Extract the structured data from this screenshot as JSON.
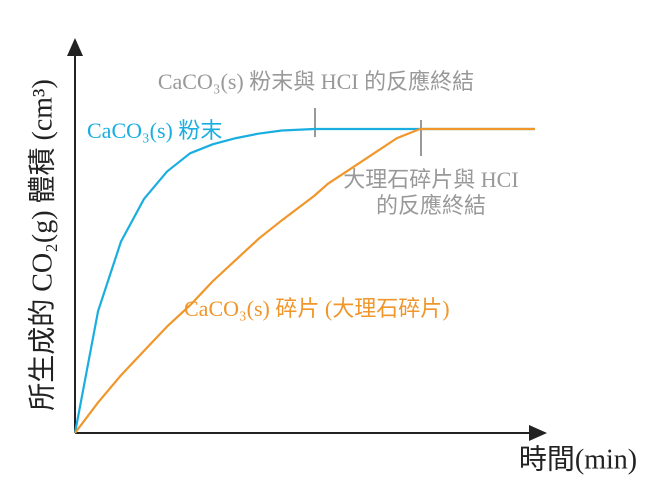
{
  "chart_data": {
    "type": "line",
    "x_label": "時間(min)",
    "y_label": "所生成的 CO₂(g) 體積 (cm³)",
    "x": [
      0,
      5,
      10,
      15,
      20,
      25,
      30,
      35,
      40,
      45,
      52,
      55,
      60,
      65,
      70,
      75,
      80,
      90,
      100
    ],
    "xlim": [
      0,
      100
    ],
    "ylim": [
      0,
      100
    ],
    "series": [
      {
        "name": "CaCO₃(s) 粉末",
        "color": "#1aaee0",
        "values": [
          0,
          40,
          63,
          77,
          86,
          92,
          95,
          97,
          98.5,
          99.5,
          100,
          100,
          100,
          100,
          100,
          100,
          100,
          100,
          100
        ]
      },
      {
        "name": "CaCO₃(s) 碎片 (大理石碎片)",
        "color": "#f0962a",
        "values": [
          0,
          10,
          19,
          27,
          35,
          42,
          50,
          57,
          64,
          70,
          78,
          82,
          87,
          92,
          97,
          100,
          100,
          100,
          100
        ]
      }
    ],
    "annotations": [
      "CaCO₃(s) 粉末與 HCI 的反應終結",
      "大理石碎片與 HCI",
      "的反應終結"
    ]
  }
}
